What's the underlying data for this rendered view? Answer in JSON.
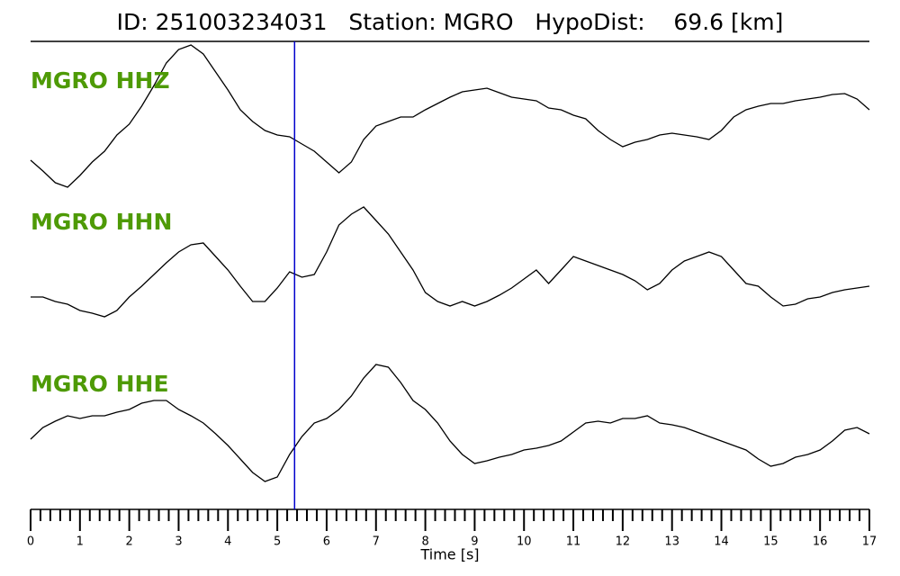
{
  "chart_data": {
    "type": "seismogram",
    "title": "ID: 251003234031   Station: MGRO   HypoDist:    69.6 [km]",
    "xlabel": "Time [s]",
    "xlim": [
      0,
      17
    ],
    "xticks": [
      0,
      1,
      2,
      3,
      4,
      5,
      6,
      7,
      8,
      9,
      10,
      11,
      12,
      13,
      14,
      15,
      16,
      17
    ],
    "xticks_minor": [
      0.2,
      0.4,
      0.6,
      0.8,
      1.2,
      1.4,
      1.6,
      1.8,
      2.2,
      2.4,
      2.6,
      2.8,
      3.2,
      3.4,
      3.6,
      3.8,
      4.2,
      4.4,
      4.6,
      4.8,
      5.2,
      5.4,
      5.6,
      5.8,
      6.2,
      6.4,
      6.6,
      6.8,
      7.2,
      7.4,
      7.6,
      7.8,
      8.2,
      8.4,
      8.6,
      8.8,
      9.2,
      9.4,
      9.6,
      9.8,
      10.2,
      10.4,
      10.6,
      10.8,
      11.2,
      11.4,
      11.6,
      11.8,
      12.2,
      12.4,
      12.6,
      12.8,
      13.2,
      13.4,
      13.6,
      13.8,
      14.2,
      14.4,
      14.6,
      14.8,
      15.2,
      15.4,
      15.6,
      15.8,
      16.2,
      16.4,
      16.6,
      16.8
    ],
    "ylim": [
      -100,
      100
    ],
    "pick_x": 5.35,
    "pick_color": "#0000cc",
    "label_color": "#4e9a06",
    "x": [
      0,
      0.25,
      0.5,
      0.75,
      1,
      1.25,
      1.5,
      1.75,
      2,
      2.25,
      2.5,
      2.75,
      3,
      3.25,
      3.5,
      3.75,
      4,
      4.25,
      4.5,
      4.75,
      5,
      5.25,
      5.5,
      5.75,
      6,
      6.25,
      6.5,
      6.75,
      7,
      7.25,
      7.5,
      7.75,
      8,
      8.25,
      8.5,
      8.75,
      9,
      9.25,
      9.5,
      9.75,
      10,
      10.25,
      10.5,
      10.75,
      11,
      11.25,
      11.5,
      11.75,
      12,
      12.25,
      12.5,
      12.75,
      13,
      13.25,
      13.5,
      13.75,
      14,
      14.25,
      14.5,
      14.75,
      15,
      15.25,
      15.5,
      15.75,
      16,
      16.25,
      16.5,
      16.75,
      17
    ],
    "series": [
      {
        "name": "MGRO HHZ",
        "color": "#000000",
        "values": [
          -47,
          -59,
          -72,
          -77,
          -64,
          -49,
          -37,
          -19,
          -7,
          13,
          36,
          61,
          76,
          81,
          71,
          51,
          31,
          9,
          -4,
          -14,
          -19,
          -21,
          -29,
          -37,
          -49,
          -61,
          -49,
          -24,
          -9,
          -4,
          1,
          1,
          9,
          16,
          23,
          29,
          31,
          33,
          28,
          23,
          21,
          19,
          11,
          9,
          3,
          -1,
          -14,
          -24,
          -32,
          -27,
          -24,
          -19,
          -17,
          -19,
          -21,
          -24,
          -14,
          1,
          9,
          13,
          16,
          16,
          19,
          21,
          23,
          26,
          27,
          21,
          9
        ]
      },
      {
        "name": "MGRO HHN",
        "color": "#000000",
        "values": [
          -42,
          -42,
          -47,
          -50,
          -57,
          -60,
          -64,
          -57,
          -42,
          -30,
          -17,
          -4,
          8,
          16,
          18,
          3,
          -12,
          -30,
          -47,
          -47,
          -32,
          -14,
          -20,
          -17,
          8,
          38,
          50,
          58,
          43,
          28,
          8,
          -12,
          -37,
          -47,
          -52,
          -47,
          -52,
          -47,
          -40,
          -32,
          -22,
          -12,
          -27,
          -12,
          3,
          -2,
          -7,
          -12,
          -17,
          -24,
          -34,
          -27,
          -12,
          -2,
          3,
          8,
          3,
          -12,
          -27,
          -30,
          -42,
          -52,
          -50,
          -44,
          -42,
          -37,
          -34,
          -32,
          -30
        ]
      },
      {
        "name": "MGRO HHE",
        "color": "#000000",
        "values": [
          -20,
          -7,
          0,
          6,
          3,
          6,
          6,
          10,
          13,
          20,
          23,
          23,
          13,
          6,
          -2,
          -14,
          -27,
          -42,
          -57,
          -67,
          -62,
          -37,
          -17,
          -2,
          3,
          13,
          28,
          48,
          63,
          60,
          43,
          23,
          13,
          -2,
          -22,
          -37,
          -47,
          -44,
          -40,
          -37,
          -32,
          -30,
          -27,
          -22,
          -12,
          -2,
          0,
          -2,
          3,
          3,
          6,
          -2,
          -4,
          -7,
          -12,
          -17,
          -22,
          -27,
          -32,
          -42,
          -50,
          -47,
          -40,
          -37,
          -32,
          -22,
          -10,
          -7,
          -14
        ]
      }
    ]
  }
}
